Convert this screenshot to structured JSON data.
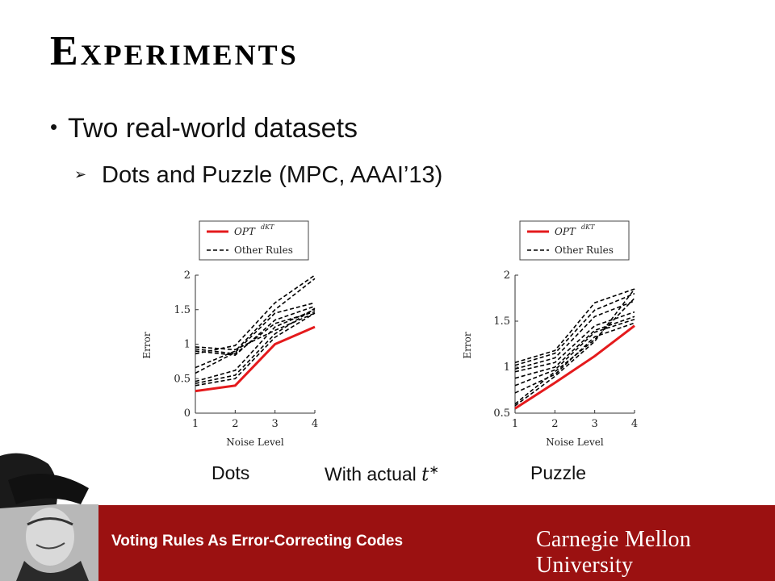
{
  "slide": {
    "title": "Experiments",
    "bullet": "Two real-world datasets",
    "sub_bullet": "Dots and Puzzle (MPC, AAAI’13)",
    "caption_text": "With actual ",
    "caption_math": "t",
    "caption_sup": "∗",
    "footer_text": "Voting Rules As Error-Correcting Codes",
    "logo_text": "Carnegie Mellon University",
    "colors": {
      "footer_bar": "#9b1111",
      "opt_line": "#e41a1c",
      "other_rules": "#000000"
    }
  },
  "chart_data": [
    {
      "type": "line",
      "name_label": "Dots",
      "xlabel": "Noise Level",
      "ylabel": "Error",
      "x": [
        1,
        2,
        3,
        4
      ],
      "xticks": [
        "1",
        "2",
        "3",
        "4"
      ],
      "yticks": [
        "0",
        "0.5",
        "1",
        "1.5",
        "2"
      ],
      "ylim": [
        0,
        2
      ],
      "legend": {
        "opt": "OPT",
        "opt_sup": "dKT",
        "other": "Other Rules",
        "placement": "top"
      },
      "opt_series": [
        0.32,
        0.4,
        1.0,
        1.25
      ],
      "other_series": [
        [
          0.96,
          0.92,
          1.2,
          1.45
        ],
        [
          0.93,
          0.86,
          1.3,
          1.47
        ],
        [
          0.9,
          0.84,
          1.35,
          1.55
        ],
        [
          0.86,
          0.98,
          1.6,
          2.0
        ],
        [
          0.66,
          0.9,
          1.5,
          1.95
        ],
        [
          0.58,
          0.88,
          1.45,
          1.6
        ],
        [
          0.46,
          0.62,
          1.25,
          1.5
        ],
        [
          0.43,
          0.55,
          1.15,
          1.52
        ],
        [
          0.4,
          0.5,
          1.1,
          1.45
        ]
      ]
    },
    {
      "type": "line",
      "name_label": "Puzzle",
      "xlabel": "Noise Level",
      "ylabel": "Error",
      "x": [
        1,
        2,
        3,
        4
      ],
      "xticks": [
        "1",
        "2",
        "3",
        "4"
      ],
      "yticks": [
        "0.5",
        "1",
        "1.5",
        "2"
      ],
      "ylim": [
        0.5,
        2
      ],
      "legend": {
        "opt": "OPT",
        "opt_sup": "dKT",
        "other": "Other Rules",
        "placement": "top"
      },
      "opt_series": [
        0.55,
        0.83,
        1.12,
        1.45
      ],
      "other_series": [
        [
          1.05,
          1.18,
          1.7,
          1.85
        ],
        [
          1.02,
          1.15,
          1.62,
          1.8
        ],
        [
          0.98,
          1.1,
          1.55,
          1.72
        ],
        [
          0.95,
          1.05,
          1.45,
          1.6
        ],
        [
          0.88,
          1.0,
          1.4,
          1.55
        ],
        [
          0.8,
          0.97,
          1.38,
          1.52
        ],
        [
          0.72,
          0.92,
          1.33,
          1.48
        ],
        [
          0.6,
          0.95,
          1.3,
          1.75
        ],
        [
          0.58,
          0.9,
          1.28,
          1.85
        ]
      ]
    }
  ]
}
